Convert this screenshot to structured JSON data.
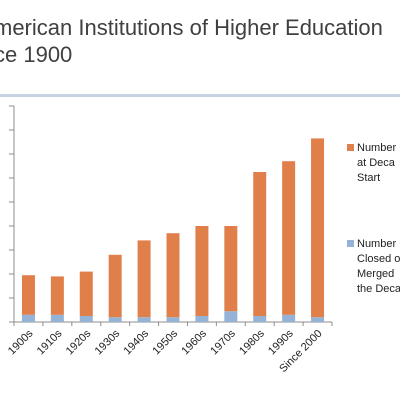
{
  "slide": {
    "title": "merican Institutions of Higher Education\nce 1900"
  },
  "chart_data": {
    "type": "bar",
    "stacked": true,
    "categories": [
      "1900s",
      "1910s",
      "1920s",
      "1930s",
      "1940s",
      "1950s",
      "1960s",
      "1970s",
      "1980s",
      "1990s",
      "Since 2000"
    ],
    "series": [
      {
        "name": "Number Closed or Merged in the Decade",
        "legend_label": "Number\nClosed o\nMerged\nthe Deca",
        "color": "#95b3d7",
        "values": [
          30,
          30,
          25,
          20,
          20,
          20,
          25,
          45,
          25,
          30,
          20
        ]
      },
      {
        "name": "Number at Decade Start",
        "legend_label": "Number\nat Deca\nStart",
        "color": "#e07f4a",
        "values": [
          165,
          160,
          185,
          260,
          320,
          350,
          375,
          355,
          600,
          640,
          745
        ]
      }
    ],
    "ylim": [
      0,
      900
    ],
    "grid": false,
    "legend_position": "right"
  }
}
